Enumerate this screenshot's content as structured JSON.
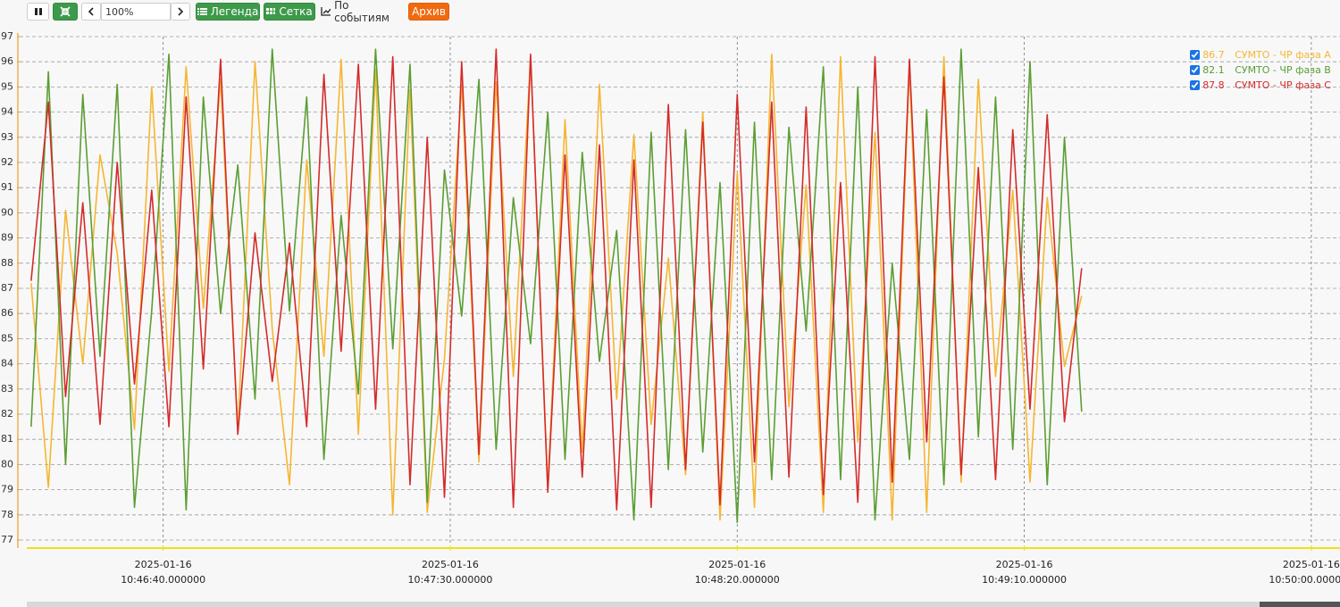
{
  "toolbar": {
    "zoom": "100%",
    "buttons": [
      "Легенда",
      "Сетка",
      "По событиям",
      "Архив"
    ]
  },
  "chart_data": {
    "type": "line",
    "grid": true,
    "legend": "upper right",
    "xlim": [
      "2025-01-16 10:46:15",
      "2025-01-16 10:50:05"
    ],
    "xticks": [
      {
        "value": "2025-01-16 10:46:40",
        "label": "2025-01-16\n10:46:40.000000"
      },
      {
        "value": "2025-01-16 10:47:30",
        "label": "2025-01-16\n10:47:30.000000"
      },
      {
        "value": "2025-01-16 10:48:20",
        "label": "2025-01-16\n10:48:20.000000"
      },
      {
        "value": "2025-01-16 10:49:10",
        "label": "2025-01-16\n10:49:10.000000"
      },
      {
        "value": "2025-01-16 10:50:00",
        "label": "2025-01-16\n10:50:00.000000"
      }
    ],
    "ylim": [
      77,
      97
    ],
    "yticks": [
      77,
      78,
      79,
      80,
      81,
      82,
      83,
      84,
      85,
      86,
      87,
      88,
      89,
      90,
      91,
      92,
      93,
      94,
      95,
      96,
      97
    ],
    "x": [
      "2025-01-16 10:46:17",
      "2025-01-16 10:46:20",
      "2025-01-16 10:46:23",
      "2025-01-16 10:46:26",
      "2025-01-16 10:46:29",
      "2025-01-16 10:46:32",
      "2025-01-16 10:46:35",
      "2025-01-16 10:46:38",
      "2025-01-16 10:46:41",
      "2025-01-16 10:46:44",
      "2025-01-16 10:46:47",
      "2025-01-16 10:46:50",
      "2025-01-16 10:46:53",
      "2025-01-16 10:46:56",
      "2025-01-16 10:46:59",
      "2025-01-16 10:47:02",
      "2025-01-16 10:47:05",
      "2025-01-16 10:47:08",
      "2025-01-16 10:47:11",
      "2025-01-16 10:47:14",
      "2025-01-16 10:47:17",
      "2025-01-16 10:47:20",
      "2025-01-16 10:47:23",
      "2025-01-16 10:47:26",
      "2025-01-16 10:47:29",
      "2025-01-16 10:47:32",
      "2025-01-16 10:47:35",
      "2025-01-16 10:47:38",
      "2025-01-16 10:47:41",
      "2025-01-16 10:47:44",
      "2025-01-16 10:47:47",
      "2025-01-16 10:47:50",
      "2025-01-16 10:47:53",
      "2025-01-16 10:47:56",
      "2025-01-16 10:47:59",
      "2025-01-16 10:48:02",
      "2025-01-16 10:48:05",
      "2025-01-16 10:48:08",
      "2025-01-16 10:48:11",
      "2025-01-16 10:48:14",
      "2025-01-16 10:48:17",
      "2025-01-16 10:48:20",
      "2025-01-16 10:48:23",
      "2025-01-16 10:48:26",
      "2025-01-16 10:48:29",
      "2025-01-16 10:48:32",
      "2025-01-16 10:48:35",
      "2025-01-16 10:48:38",
      "2025-01-16 10:48:41",
      "2025-01-16 10:48:44",
      "2025-01-16 10:48:47",
      "2025-01-16 10:48:50",
      "2025-01-16 10:48:53",
      "2025-01-16 10:48:56",
      "2025-01-16 10:48:59",
      "2025-01-16 10:49:02",
      "2025-01-16 10:49:05",
      "2025-01-16 10:49:08",
      "2025-01-16 10:49:11",
      "2025-01-16 10:49:14",
      "2025-01-16 10:49:17",
      "2025-01-16 10:49:20"
    ],
    "series": [
      {
        "name": "СУМТО - ЧР фаза A",
        "color": "#f5b632",
        "values": [
          87.2,
          79.1,
          90.1,
          84.0,
          92.3,
          88.4,
          81.4,
          95.0,
          83.7,
          95.8,
          86.2,
          95.3,
          81.3,
          96.0,
          85.4,
          79.2,
          92.1,
          84.3,
          96.1,
          81.2,
          95.7,
          78.0,
          94.9,
          78.1,
          84.2,
          95.1,
          80.1,
          95.2,
          83.5,
          96.2,
          79.1,
          93.7,
          80.5,
          95.1,
          82.6,
          93.1,
          81.6,
          88.2,
          79.6,
          94.0,
          77.8,
          91.6,
          78.3,
          96.3,
          82.3,
          91.1,
          78.1,
          96.2,
          80.9,
          93.2,
          77.8,
          95.8,
          78.1,
          96.2,
          79.3,
          95.3,
          83.5,
          90.9,
          79.3,
          90.6,
          83.9,
          86.7
        ]
      },
      {
        "name": "СУМТО - ЧР фаза B",
        "color": "#5b9e34",
        "values": [
          81.5,
          95.6,
          80.0,
          94.7,
          84.3,
          95.1,
          78.3,
          86.1,
          96.3,
          78.2,
          94.6,
          86.0,
          91.9,
          82.6,
          96.5,
          86.1,
          94.6,
          80.2,
          89.9,
          82.8,
          96.5,
          84.6,
          95.9,
          78.5,
          91.7,
          85.9,
          95.3,
          80.6,
          90.6,
          84.8,
          94.0,
          80.2,
          92.4,
          84.1,
          89.3,
          77.8,
          93.2,
          79.8,
          93.3,
          80.5,
          91.2,
          77.7,
          93.6,
          79.4,
          93.4,
          85.3,
          95.8,
          79.4,
          95.0,
          77.8,
          88.0,
          80.2,
          94.1,
          79.2,
          96.5,
          81.1,
          94.6,
          80.6,
          96.0,
          79.2,
          93.0,
          82.1
        ]
      },
      {
        "name": "СУМТО - ЧР фаза C",
        "color": "#d42b2b",
        "values": [
          87.3,
          94.4,
          82.7,
          90.4,
          81.6,
          92.0,
          83.2,
          90.9,
          81.5,
          94.6,
          83.8,
          96.1,
          81.2,
          89.2,
          83.3,
          88.8,
          81.5,
          95.5,
          84.5,
          95.9,
          82.2,
          96.2,
          79.2,
          93.0,
          78.7,
          96.0,
          80.4,
          96.5,
          78.3,
          96.3,
          78.9,
          92.3,
          79.5,
          92.7,
          78.2,
          92.1,
          78.3,
          94.3,
          79.8,
          93.6,
          78.4,
          94.7,
          80.1,
          94.4,
          79.5,
          94.2,
          78.8,
          91.2,
          78.5,
          96.2,
          79.3,
          96.1,
          80.9,
          95.4,
          79.6,
          91.8,
          79.4,
          93.3,
          82.2,
          93.9,
          81.7,
          87.8
        ]
      }
    ]
  }
}
